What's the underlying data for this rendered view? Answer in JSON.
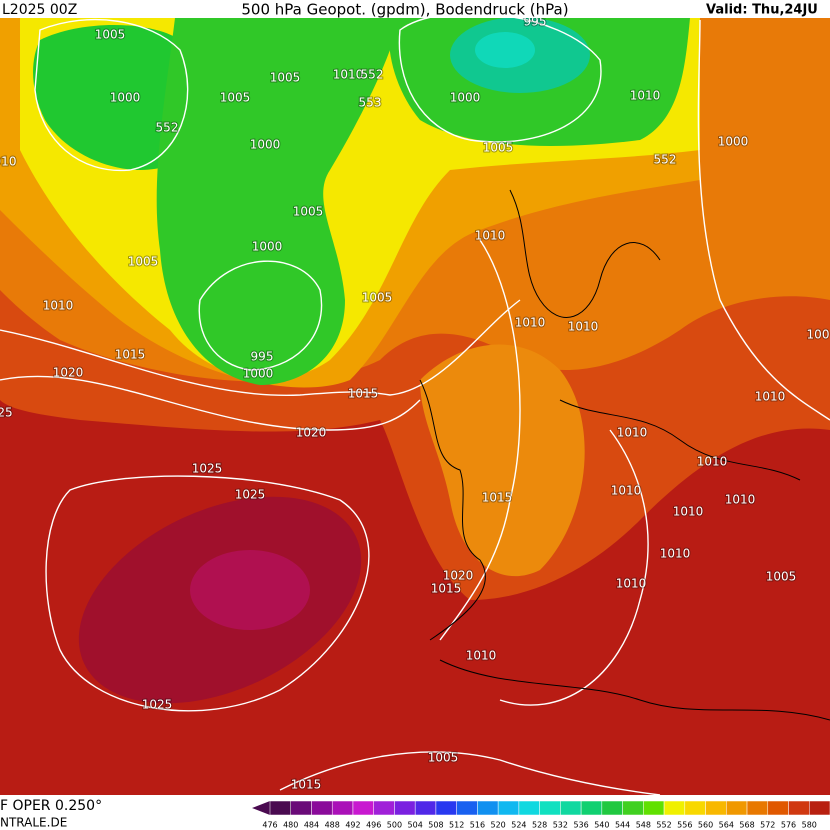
{
  "header": {
    "run": "L2025 00Z",
    "title": "500 hPa Geopot. (gpdm), Bodendruck (hPa)",
    "valid": "Valid: Thu,24JU"
  },
  "footer": {
    "model": "F OPER 0.250°",
    "site": "NTRALE.DE"
  },
  "isobar_labels": [
    1005,
    1000,
    552,
    1005,
    1005,
    1010,
    552,
    553,
    995,
    1000,
    1010,
    1000,
    1005,
    552,
    1000,
    "010",
    1005,
    1010,
    1000,
    1005,
    1005,
    1010,
    1010,
    1010,
    1015,
    995,
    1000,
    1020,
    1015,
    1010,
    1020,
    1010,
    1010,
    1025,
    1025,
    1015,
    1010,
    1010,
    1010,
    1010,
    1005,
    1020,
    1015,
    1010,
    1010,
    1025,
    1005,
    1015,
    25,
    100
  ],
  "legend": {
    "labels": [
      476,
      480,
      484,
      488,
      492,
      496,
      500,
      504,
      508,
      512,
      516,
      520,
      524,
      528,
      532,
      536,
      540,
      544,
      548,
      552,
      556,
      560,
      564,
      568,
      572,
      576,
      580
    ],
    "colors": [
      "#4a0a50",
      "#6a0a78",
      "#8a0a9a",
      "#aa10b8",
      "#c818d0",
      "#a020d8",
      "#7a20e0",
      "#5028e8",
      "#2838f0",
      "#1860f0",
      "#1090f0",
      "#10b8f0",
      "#10d8e0",
      "#10e0c0",
      "#10d8a0",
      "#10d070",
      "#20c840",
      "#40d020",
      "#60e000",
      "#f0f000",
      "#f8d800",
      "#f8b800",
      "#f09800",
      "#e87800",
      "#e05800",
      "#d03810",
      "#b82010"
    ]
  }
}
